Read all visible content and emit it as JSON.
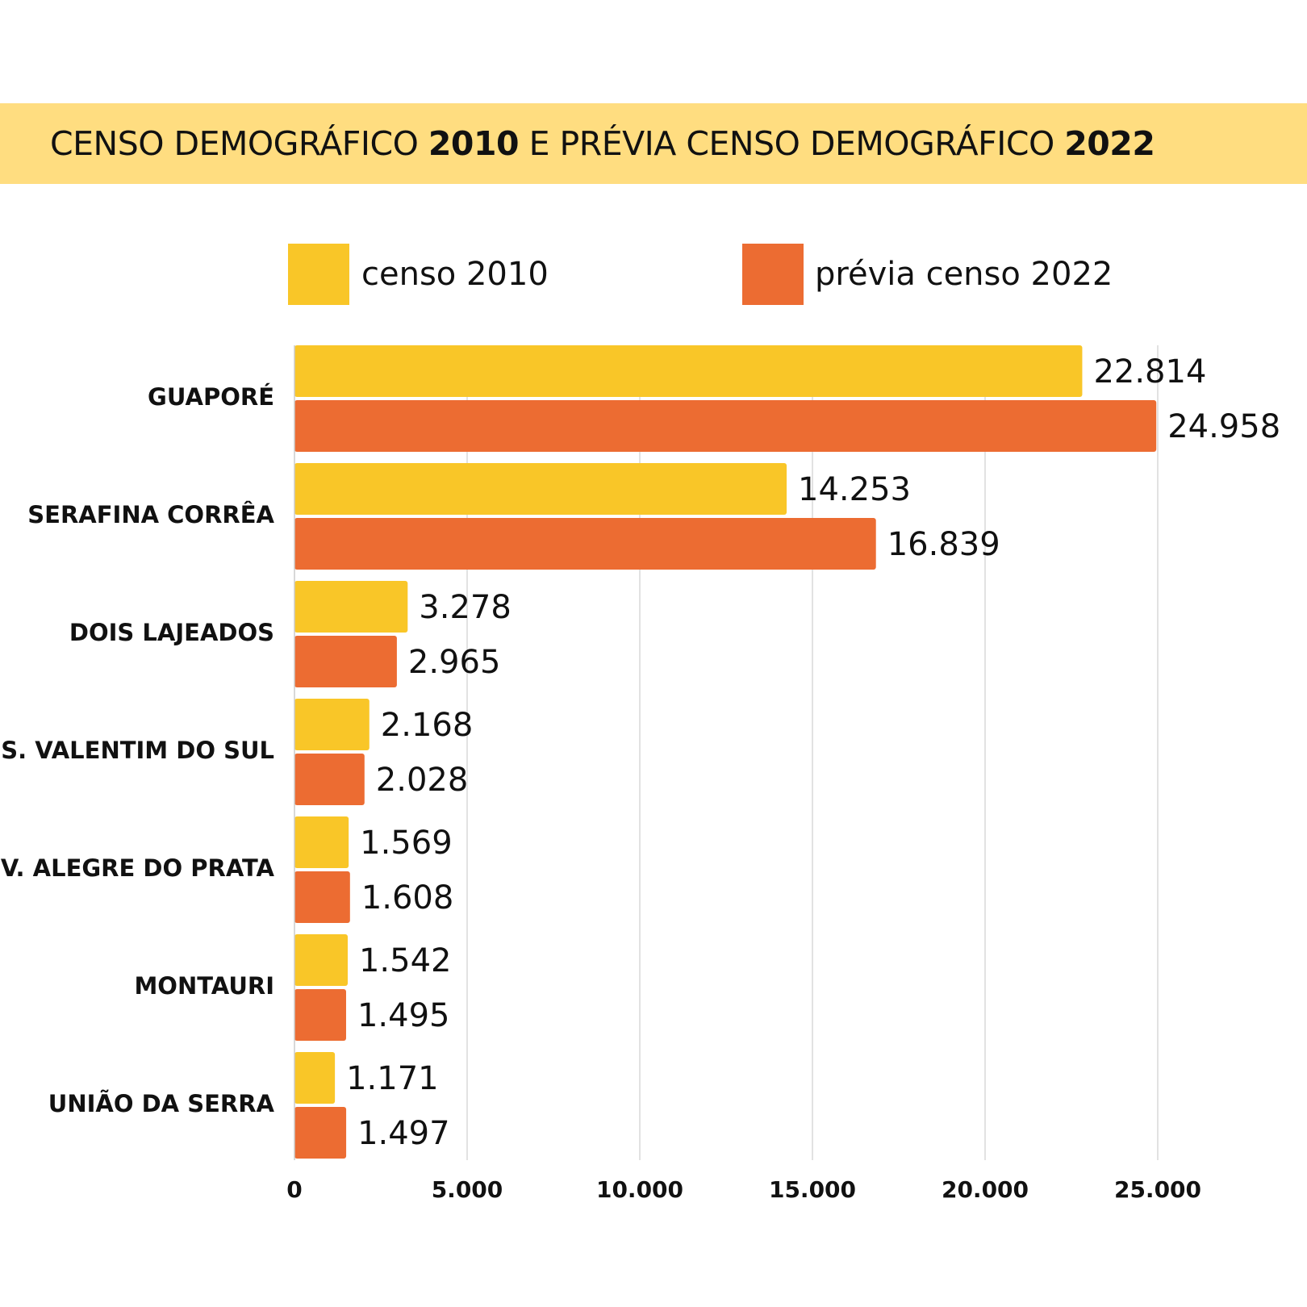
{
  "title": {
    "part1": "CENSO DEMOGRÁFICO ",
    "year1": "2010",
    "part2": " E PRÉVIA CENSO DEMOGRÁFICO ",
    "year2": "2022"
  },
  "colors": {
    "title_band": "#FFDD80",
    "censo_2010": "#F9C628",
    "previa_2022": "#EC6C32",
    "grid": "#D9D9D9"
  },
  "chart_data": {
    "type": "bar",
    "orientation": "horizontal",
    "title": "CENSO DEMOGRÁFICO 2010 E PRÉVIA CENSO DEMOGRÁFICO 2022",
    "categories": [
      "GUAPORÉ",
      "SERAFINA CORRÊA",
      "DOIS LAJEADOS",
      "S. VALENTIM DO SUL",
      "V. ALEGRE DO PRATA",
      "MONTAURI",
      "UNIÃO DA SERRA"
    ],
    "series": [
      {
        "name": "censo 2010",
        "values": [
          22814,
          14253,
          3278,
          2168,
          1569,
          1542,
          1171
        ],
        "labels": [
          "22.814",
          "14.253",
          "3.278",
          "2.168",
          "1.569",
          "1.542",
          "1.171"
        ]
      },
      {
        "name": "prévia censo 2022",
        "values": [
          24958,
          16839,
          2965,
          2028,
          1608,
          1495,
          1497
        ],
        "labels": [
          "24.958",
          "16.839",
          "2.965",
          "2.028",
          "1.608",
          "1.495",
          "1.497"
        ]
      }
    ],
    "xlim": [
      0,
      25000
    ],
    "xticks": [
      0,
      5000,
      10000,
      15000,
      20000,
      25000
    ],
    "xtick_labels": [
      "0",
      "5.000",
      "10.000",
      "15.000",
      "20.000",
      "25.000"
    ],
    "grid": "vertical",
    "legend_position": "top"
  }
}
